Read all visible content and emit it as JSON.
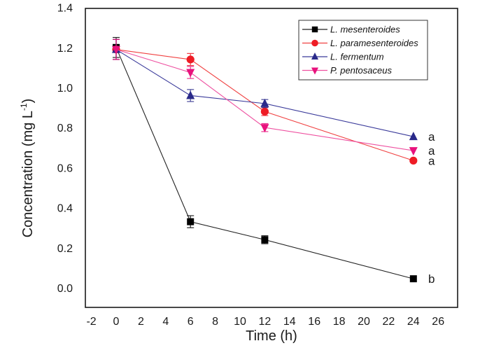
{
  "chart_data": {
    "type": "line",
    "title": "",
    "xlabel": "Time (h)",
    "ylabel": "Concentration (mg L",
    "ylabel_superscript": "-1",
    "ylabel_close": ")",
    "xlim": [
      -2,
      26
    ],
    "ylim": [
      0.0,
      1.4
    ],
    "xticks": [
      -2,
      0,
      2,
      4,
      6,
      8,
      10,
      12,
      14,
      16,
      18,
      20,
      22,
      24,
      26
    ],
    "xtick_labels": [
      "-2",
      "0",
      "2",
      "4",
      "6",
      "8",
      "10",
      "12",
      "14",
      "16",
      "18",
      "20",
      "22",
      "24",
      "26"
    ],
    "yticks": [
      0.0,
      0.2,
      0.4,
      0.6,
      0.8,
      1.0,
      1.2,
      1.4
    ],
    "ytick_labels": [
      "0.0",
      "0.2",
      "0.4",
      "0.6",
      "0.8",
      "1.0",
      "1.2",
      "1.4"
    ],
    "grid": false,
    "legend_position": "top-right",
    "x": [
      0,
      6,
      12,
      24
    ],
    "series": [
      {
        "name": "L. mesenteroides",
        "marker": "square",
        "color": "#000000",
        "line_color": "#222222",
        "values": [
          1.2,
          0.33,
          0.24,
          0.045
        ],
        "errors": [
          0.05,
          0.03,
          0.02,
          0.0
        ],
        "annotation": "b"
      },
      {
        "name": "L. paramesenteroides",
        "marker": "circle",
        "color": "#ee1c25",
        "line_color": "#f04040",
        "values": [
          1.19,
          1.14,
          0.88,
          0.635
        ],
        "errors": [
          0.05,
          0.03,
          0.02,
          0.0
        ],
        "annotation": "a"
      },
      {
        "name": "L. fermentum",
        "marker": "triangle-up",
        "color": "#2a2a8a",
        "line_color": "#3a3a9a",
        "values": [
          1.19,
          0.96,
          0.92,
          0.755
        ],
        "errors": [
          0.05,
          0.03,
          0.02,
          0.0
        ],
        "annotation": "a"
      },
      {
        "name": "P. pentosaceus",
        "marker": "triangle-down",
        "color": "#e8127d",
        "line_color": "#ee50a0",
        "values": [
          1.19,
          1.075,
          0.8,
          0.685
        ],
        "errors": [
          0.05,
          0.03,
          0.02,
          0.0
        ],
        "annotation": "a"
      }
    ]
  }
}
